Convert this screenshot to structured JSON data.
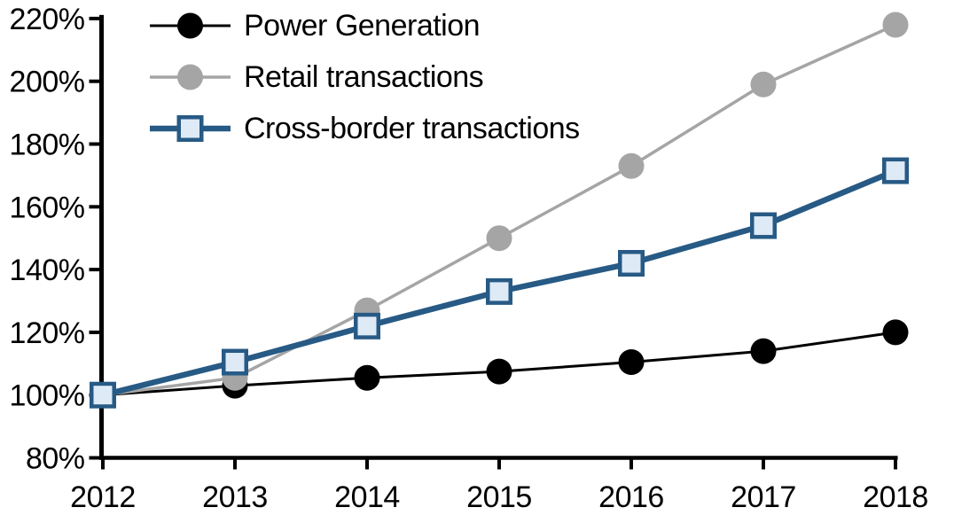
{
  "chart_data": {
    "type": "line",
    "title": "",
    "x_labels": [
      "2012",
      "2013",
      "2014",
      "2015",
      "2016",
      "2017",
      "2018"
    ],
    "ylim": [
      80,
      220
    ],
    "ytick_step": 20,
    "ytick_labels": [
      "80%",
      "100%",
      "120%",
      "140%",
      "160%",
      "180%",
      "200%",
      "220%"
    ],
    "grid": false,
    "legend_position": "top-left",
    "series": [
      {
        "name": "Power Generation",
        "values": [
          100,
          103,
          105.5,
          107.5,
          110.5,
          114,
          120
        ],
        "color": "#000000",
        "marker": "circle",
        "marker_fill": "#000000",
        "line_width": 3
      },
      {
        "name": "Retail transactions",
        "values": [
          100,
          105.5,
          127,
          150,
          173,
          199,
          218
        ],
        "color": "#A5A5A5",
        "marker": "circle",
        "marker_fill": "#A5A5A5",
        "line_width": 3.5
      },
      {
        "name": "Cross-border transactions",
        "values": [
          100,
          110.5,
          122,
          133,
          142,
          154,
          171.5
        ],
        "color": "#275A85",
        "marker": "square",
        "marker_fill": "#DEEAF6",
        "line_width": 6.5
      }
    ]
  },
  "colors": {
    "background": "#FFFFFF",
    "axis": "#000000",
    "text": "#000000"
  }
}
